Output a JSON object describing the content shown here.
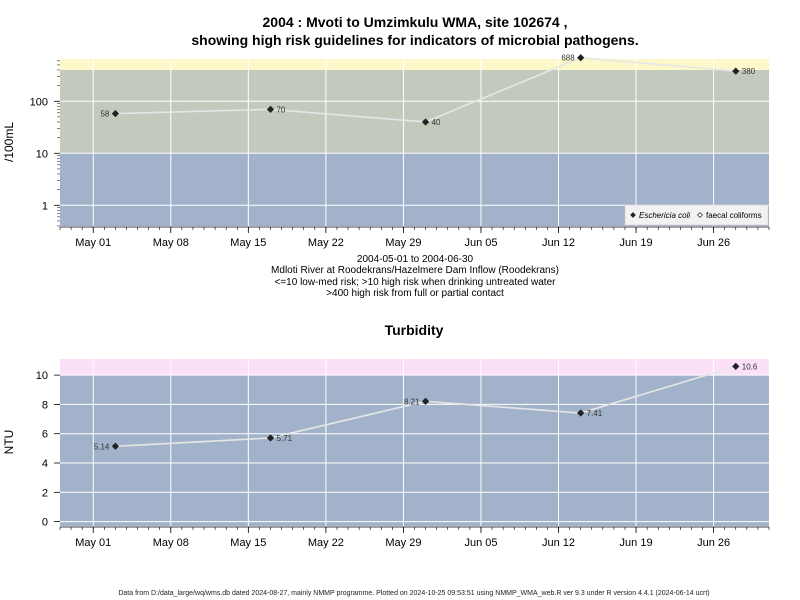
{
  "chart_data": [
    {
      "type": "line",
      "title_line1": "2004 : Mvoti to Umzimkulu WMA, site 102674 ,",
      "title_line2": "showing high risk guidelines for indicators of microbial pathogens.",
      "ylabel": "/100mL",
      "y_scale": "log",
      "yticks": [
        1,
        10,
        100
      ],
      "ylim": [
        0.4,
        650
      ],
      "xlim": [
        "2004-04-28",
        "2004-07-01"
      ],
      "xticks": [
        {
          "date": "2004-05-01",
          "label": "May 01"
        },
        {
          "date": "2004-05-08",
          "label": "May 08"
        },
        {
          "date": "2004-05-15",
          "label": "May 15"
        },
        {
          "date": "2004-05-22",
          "label": "May 22"
        },
        {
          "date": "2004-05-29",
          "label": "May 29"
        },
        {
          "date": "2004-06-05",
          "label": "Jun 05"
        },
        {
          "date": "2004-06-12",
          "label": "Jun 12"
        },
        {
          "date": "2004-06-19",
          "label": "Jun 19"
        },
        {
          "date": "2004-06-26",
          "label": "Jun 26"
        }
      ],
      "bands": [
        {
          "from": 0.4,
          "to": 10,
          "color": "#a2b2ca"
        },
        {
          "from": 10,
          "to": 400,
          "color": "#c2cabe"
        },
        {
          "from": 400,
          "to": 650,
          "color": "#fdf8c9"
        }
      ],
      "series": [
        {
          "name": "Eschericia coli",
          "marker": "diamond-filled",
          "points": [
            {
              "x": "2004-05-03",
              "y": 58,
              "label": "58",
              "label_pos": "left"
            },
            {
              "x": "2004-05-17",
              "y": 70,
              "label": "70",
              "label_pos": "right"
            },
            {
              "x": "2004-05-31",
              "y": 40,
              "label": "40",
              "label_pos": "right"
            },
            {
              "x": "2004-06-14",
              "y": 688,
              "label": "688",
              "label_pos": "left"
            },
            {
              "x": "2004-06-28",
              "y": 380,
              "label": "380",
              "label_pos": "right"
            }
          ]
        }
      ],
      "legend": {
        "position": "bottom-right",
        "entries": [
          {
            "label": "Eschericia coli",
            "marker": "diamond-filled",
            "italic": true
          },
          {
            "label": "faecal coliforms",
            "marker": "diamond-open",
            "italic": false
          }
        ]
      },
      "caption_lines": [
        "2004-05-01 to 2004-06-30",
        "Mdloti River at Roodekrans/Hazelmere Dam Inflow (Roodekrans)",
        "<=10 low-med risk; >10 high risk when drinking untreated water",
        ">400 high risk from full or partial contact"
      ]
    },
    {
      "type": "line",
      "title": "Turbidity",
      "ylabel": "NTU",
      "yticks": [
        0,
        2,
        4,
        6,
        8,
        10
      ],
      "ylim": [
        -0.3,
        11.1
      ],
      "xlim": [
        "2004-04-28",
        "2004-07-01"
      ],
      "xticks": [
        {
          "date": "2004-05-01",
          "label": "May 01"
        },
        {
          "date": "2004-05-08",
          "label": "May 08"
        },
        {
          "date": "2004-05-15",
          "label": "May 15"
        },
        {
          "date": "2004-05-22",
          "label": "May 22"
        },
        {
          "date": "2004-05-29",
          "label": "May 29"
        },
        {
          "date": "2004-06-05",
          "label": "Jun 05"
        },
        {
          "date": "2004-06-12",
          "label": "Jun 12"
        },
        {
          "date": "2004-06-19",
          "label": "Jun 19"
        },
        {
          "date": "2004-06-26",
          "label": "Jun 26"
        }
      ],
      "bands": [
        {
          "from": -0.3,
          "to": 10,
          "color": "#a2b2ca"
        },
        {
          "from": 10,
          "to": 11.1,
          "color": "#fbe0f8"
        }
      ],
      "series": [
        {
          "name": "",
          "marker": "diamond-filled",
          "points": [
            {
              "x": "2004-05-03",
              "y": 5.14,
              "label": "5.14",
              "label_pos": "left"
            },
            {
              "x": "2004-05-17",
              "y": 5.71,
              "label": "5.71",
              "label_pos": "right"
            },
            {
              "x": "2004-05-31",
              "y": 8.21,
              "label": "8.21",
              "label_pos": "left"
            },
            {
              "x": "2004-06-14",
              "y": 7.41,
              "label": "7.41",
              "label_pos": "right"
            },
            {
              "x": "2004-06-28",
              "y": 10.6,
              "label": "10.6",
              "label_pos": "right"
            }
          ]
        }
      ]
    }
  ],
  "footer": "Data from D:/data_large/wq/wms.db dated 2024-08-27, mainly NMMP programme. Plotted on 2024-10-25 09:53:51 using NMMP_WMA_web.R ver 9.3 under R version 4.4.1 (2024-06-14 ucrt)"
}
